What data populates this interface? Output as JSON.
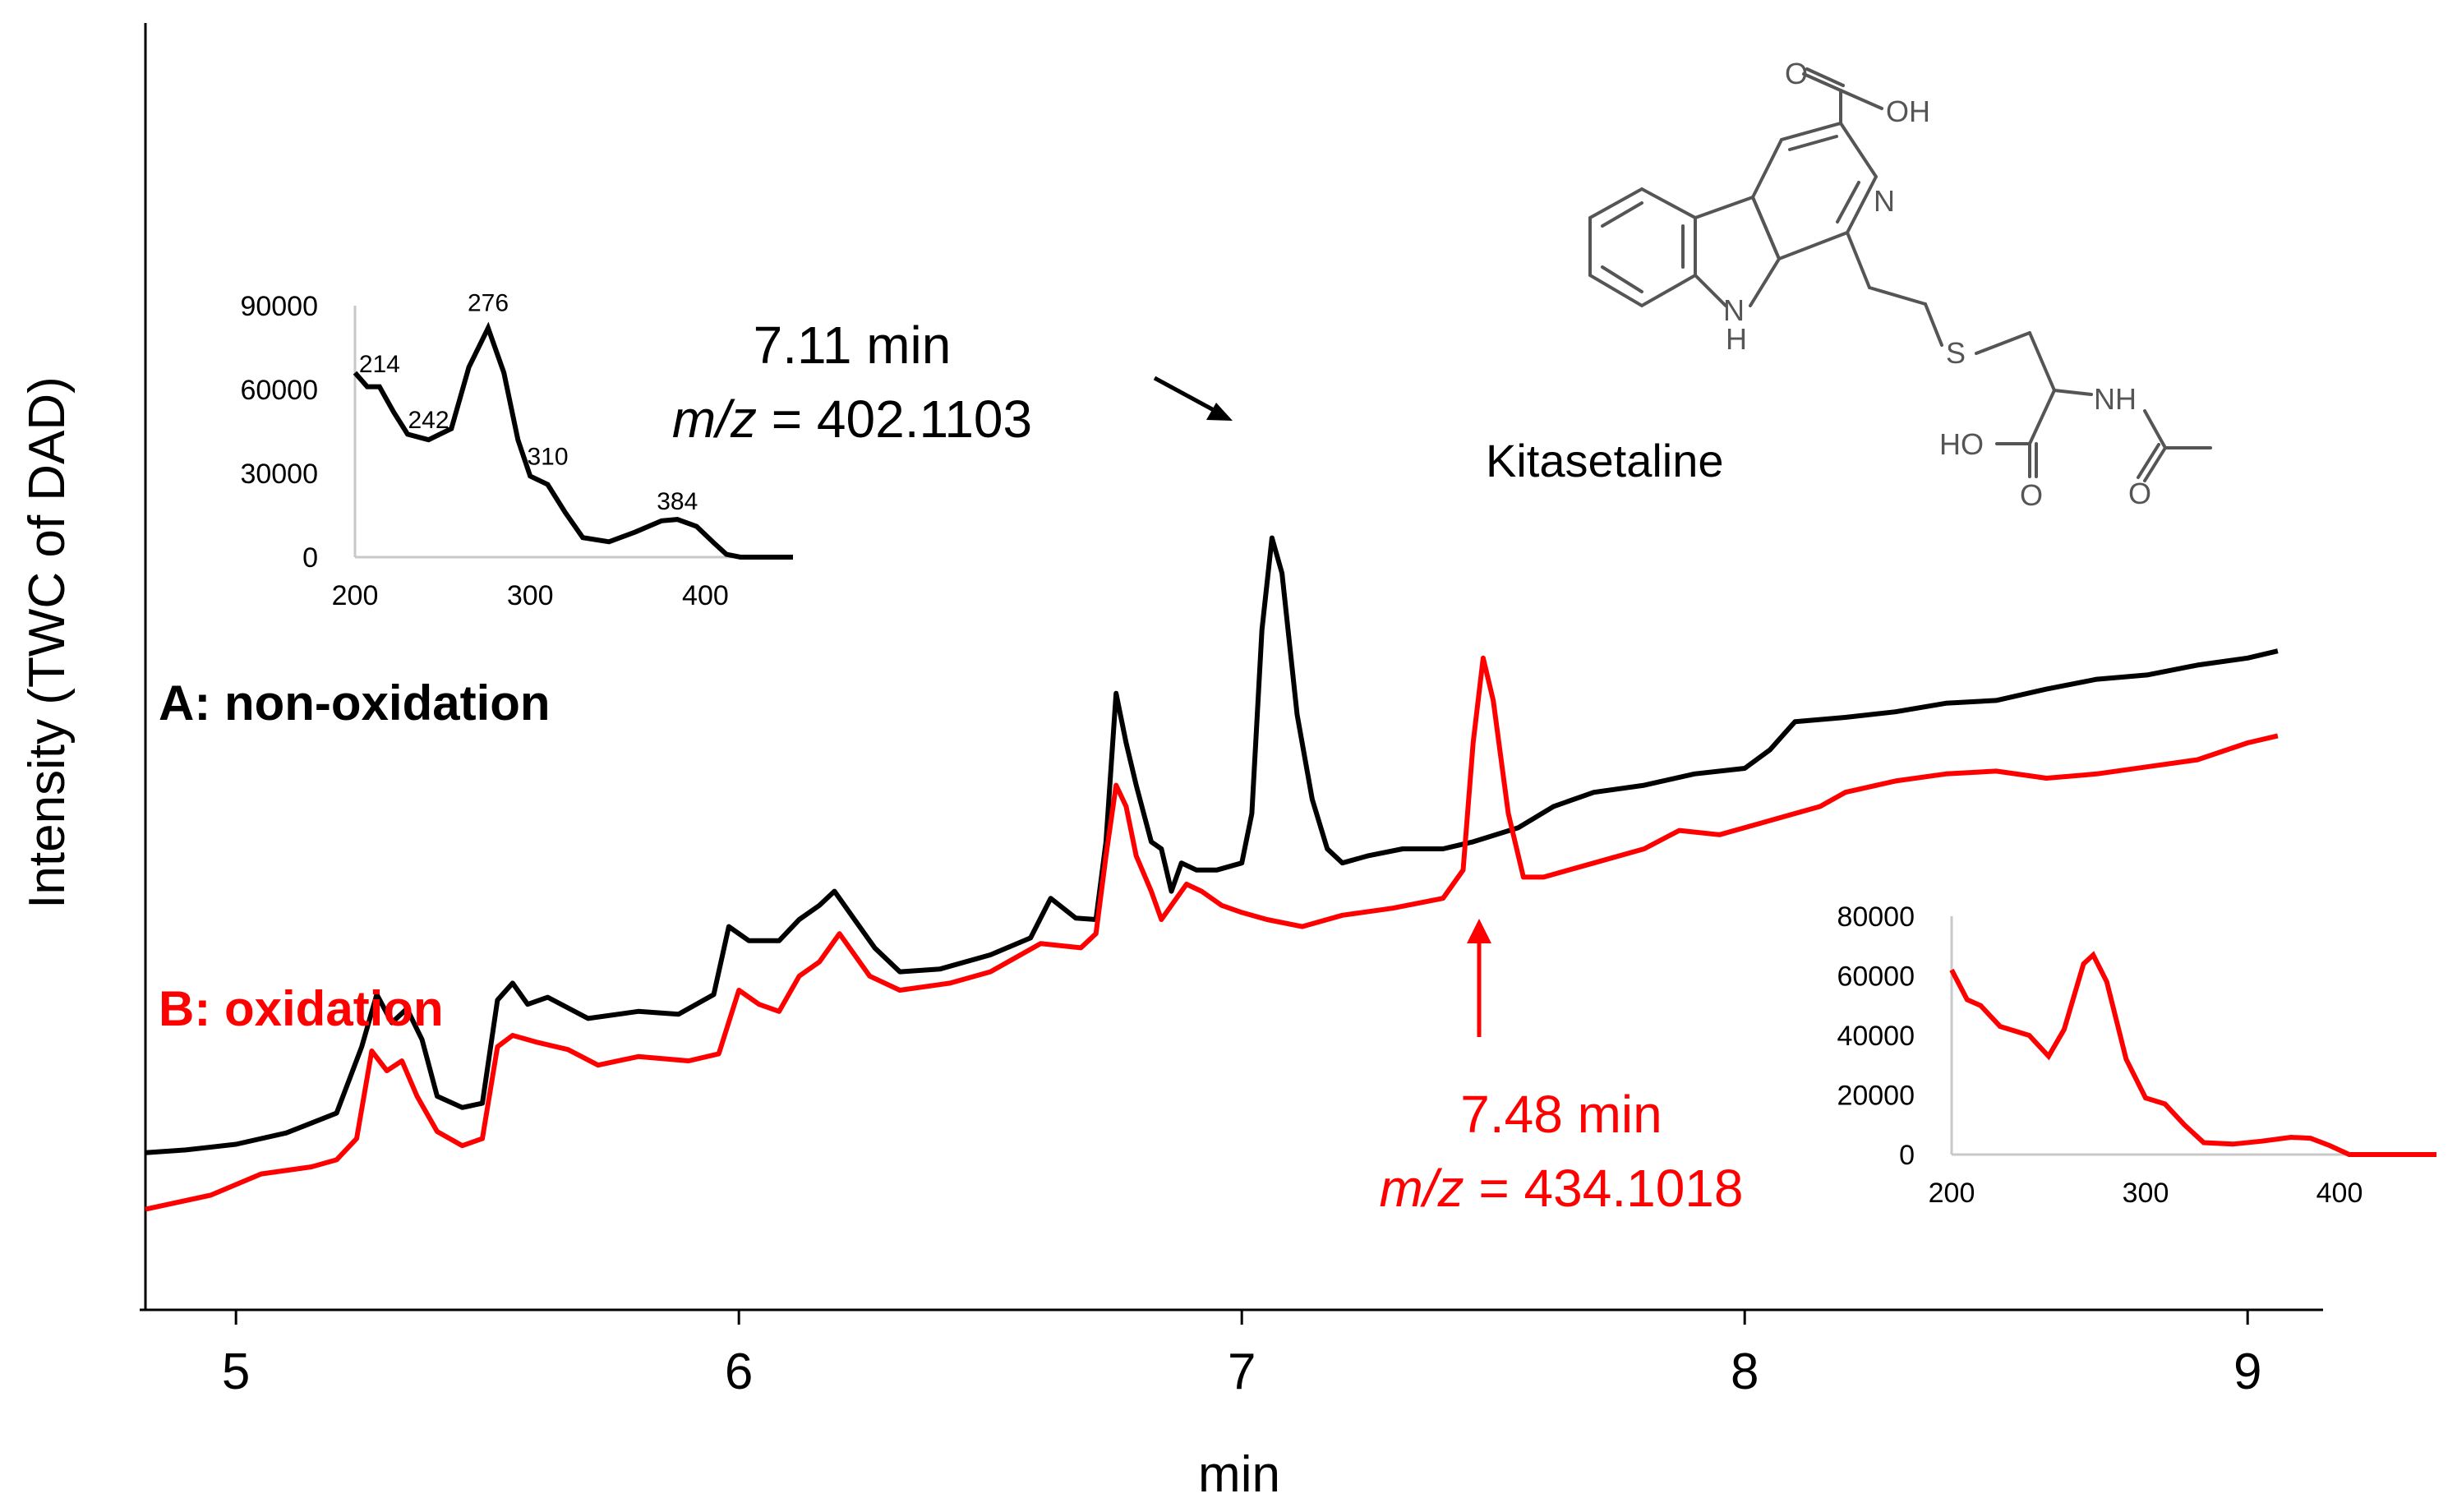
{
  "colors": {
    "black": "#000000",
    "red": "#ff0000",
    "struct": "#555555",
    "insetAxis": "#c8c8c8"
  },
  "chart_data": {
    "type": "line",
    "xlabel": "min",
    "ylabel": "Intensity (TWC of DAD)",
    "xlim": [
      4.82,
      9.15
    ],
    "x_ticks": [
      5,
      6,
      7,
      8,
      9
    ],
    "x_tick_labels": [
      "5",
      "6",
      "7",
      "8",
      "9"
    ],
    "series": [
      {
        "name": "A: non-oxidation",
        "color": "#000000",
        "points": [
          [
            4.82,
            1.0
          ],
          [
            4.9,
            1.2
          ],
          [
            5.0,
            1.6
          ],
          [
            5.1,
            2.4
          ],
          [
            5.2,
            3.8
          ],
          [
            5.25,
            8.5
          ],
          [
            5.28,
            12.2
          ],
          [
            5.31,
            10.2
          ],
          [
            5.34,
            11.2
          ],
          [
            5.37,
            9.0
          ],
          [
            5.4,
            5.0
          ],
          [
            5.45,
            4.2
          ],
          [
            5.49,
            4.5
          ],
          [
            5.52,
            11.8
          ],
          [
            5.55,
            13.0
          ],
          [
            5.58,
            11.5
          ],
          [
            5.62,
            12.0
          ],
          [
            5.7,
            10.5
          ],
          [
            5.8,
            11.0
          ],
          [
            5.88,
            10.8
          ],
          [
            5.95,
            12.2
          ],
          [
            5.98,
            17.0
          ],
          [
            6.02,
            16.0
          ],
          [
            6.08,
            16.0
          ],
          [
            6.12,
            17.5
          ],
          [
            6.16,
            18.5
          ],
          [
            6.19,
            19.5
          ],
          [
            6.23,
            17.5
          ],
          [
            6.27,
            15.5
          ],
          [
            6.32,
            13.8
          ],
          [
            6.4,
            14.0
          ],
          [
            6.5,
            15.0
          ],
          [
            6.58,
            16.2
          ],
          [
            6.62,
            19.0
          ],
          [
            6.67,
            17.6
          ],
          [
            6.71,
            17.5
          ],
          [
            6.73,
            23.0
          ],
          [
            6.75,
            33.5
          ],
          [
            6.77,
            30.0
          ],
          [
            6.79,
            27.0
          ],
          [
            6.82,
            23.0
          ],
          [
            6.84,
            22.5
          ],
          [
            6.86,
            19.5
          ],
          [
            6.88,
            21.5
          ],
          [
            6.91,
            21.0
          ],
          [
            6.95,
            21.0
          ],
          [
            7.0,
            21.5
          ],
          [
            7.02,
            25.0
          ],
          [
            7.04,
            38.0
          ],
          [
            7.06,
            44.5
          ],
          [
            7.08,
            42.0
          ],
          [
            7.11,
            32.0
          ],
          [
            7.14,
            26.0
          ],
          [
            7.17,
            22.5
          ],
          [
            7.2,
            21.5
          ],
          [
            7.25,
            22.0
          ],
          [
            7.32,
            22.5
          ],
          [
            7.4,
            22.5
          ],
          [
            7.46,
            23.0
          ],
          [
            7.55,
            24.0
          ],
          [
            7.62,
            25.5
          ],
          [
            7.7,
            26.5
          ],
          [
            7.8,
            27.0
          ],
          [
            7.9,
            27.8
          ],
          [
            8.0,
            28.2
          ],
          [
            8.05,
            29.5
          ],
          [
            8.1,
            31.5
          ],
          [
            8.2,
            31.8
          ],
          [
            8.3,
            32.2
          ],
          [
            8.4,
            32.8
          ],
          [
            8.5,
            33.0
          ],
          [
            8.6,
            33.8
          ],
          [
            8.7,
            34.5
          ],
          [
            8.8,
            34.8
          ],
          [
            8.9,
            35.5
          ],
          [
            9.0,
            36.0
          ],
          [
            9.06,
            36.5
          ]
        ]
      },
      {
        "name": "B: oxidation",
        "color": "#ff0000",
        "points": [
          [
            4.82,
            -3.0
          ],
          [
            4.95,
            -2.0
          ],
          [
            5.05,
            -0.5
          ],
          [
            5.15,
            0.0
          ],
          [
            5.2,
            0.5
          ],
          [
            5.24,
            2.0
          ],
          [
            5.27,
            8.2
          ],
          [
            5.3,
            6.8
          ],
          [
            5.33,
            7.5
          ],
          [
            5.36,
            5.0
          ],
          [
            5.4,
            2.5
          ],
          [
            5.45,
            1.5
          ],
          [
            5.49,
            2.0
          ],
          [
            5.52,
            8.5
          ],
          [
            5.55,
            9.3
          ],
          [
            5.6,
            8.8
          ],
          [
            5.66,
            8.3
          ],
          [
            5.72,
            7.2
          ],
          [
            5.8,
            7.8
          ],
          [
            5.9,
            7.5
          ],
          [
            5.96,
            8.0
          ],
          [
            6.0,
            12.5
          ],
          [
            6.04,
            11.5
          ],
          [
            6.08,
            11.0
          ],
          [
            6.12,
            13.5
          ],
          [
            6.16,
            14.5
          ],
          [
            6.2,
            16.5
          ],
          [
            6.26,
            13.5
          ],
          [
            6.32,
            12.5
          ],
          [
            6.42,
            13.0
          ],
          [
            6.5,
            13.8
          ],
          [
            6.6,
            15.8
          ],
          [
            6.68,
            15.5
          ],
          [
            6.71,
            16.5
          ],
          [
            6.73,
            22.0
          ],
          [
            6.75,
            27.0
          ],
          [
            6.77,
            25.5
          ],
          [
            6.79,
            22.0
          ],
          [
            6.82,
            19.5
          ],
          [
            6.84,
            17.5
          ],
          [
            6.86,
            18.5
          ],
          [
            6.89,
            20.0
          ],
          [
            6.92,
            19.5
          ],
          [
            6.96,
            18.5
          ],
          [
            7.0,
            18.0
          ],
          [
            7.05,
            17.5
          ],
          [
            7.12,
            17.0
          ],
          [
            7.2,
            17.8
          ],
          [
            7.3,
            18.3
          ],
          [
            7.4,
            19.0
          ],
          [
            7.44,
            21.0
          ],
          [
            7.46,
            30.0
          ],
          [
            7.48,
            36.0
          ],
          [
            7.5,
            33.0
          ],
          [
            7.53,
            25.0
          ],
          [
            7.56,
            20.5
          ],
          [
            7.6,
            20.5
          ],
          [
            7.7,
            21.5
          ],
          [
            7.8,
            22.5
          ],
          [
            7.87,
            23.8
          ],
          [
            7.95,
            23.5
          ],
          [
            8.05,
            24.5
          ],
          [
            8.15,
            25.5
          ],
          [
            8.2,
            26.5
          ],
          [
            8.3,
            27.3
          ],
          [
            8.4,
            27.8
          ],
          [
            8.5,
            28.0
          ],
          [
            8.6,
            27.5
          ],
          [
            8.7,
            27.8
          ],
          [
            8.8,
            28.3
          ],
          [
            8.9,
            28.8
          ],
          [
            9.0,
            30.0
          ],
          [
            9.06,
            30.5
          ]
        ]
      }
    ],
    "annotations": [
      {
        "id": "peak-a",
        "time": "7.11 min",
        "mz_prefix": "m/z",
        "mz_value": "= 402.1103",
        "color": "#000000"
      },
      {
        "id": "peak-b",
        "time": "7.48 min",
        "mz_prefix": "m/z",
        "mz_value": "= 434.1018",
        "color": "#ff0000"
      }
    ],
    "inset_a": {
      "type": "line",
      "color": "#000000",
      "xlim": [
        200,
        450
      ],
      "ylim": [
        0,
        90000
      ],
      "x_tick_labels": [
        "200",
        "300",
        "400"
      ],
      "y_tick_labels": [
        "0",
        "30000",
        "60000",
        "90000"
      ],
      "peak_labels": [
        {
          "x": 214,
          "y": 62000,
          "text": "214"
        },
        {
          "x": 242,
          "y": 42000,
          "text": "242"
        },
        {
          "x": 276,
          "y": 84000,
          "text": "276"
        },
        {
          "x": 310,
          "y": 29000,
          "text": "310"
        },
        {
          "x": 384,
          "y": 13000,
          "text": "384"
        }
      ],
      "points": [
        [
          200,
          66000
        ],
        [
          207,
          61000
        ],
        [
          214,
          61000
        ],
        [
          222,
          52000
        ],
        [
          230,
          44000
        ],
        [
          242,
          42000
        ],
        [
          255,
          46000
        ],
        [
          265,
          68000
        ],
        [
          276,
          82000
        ],
        [
          285,
          66000
        ],
        [
          293,
          42000
        ],
        [
          300,
          29000
        ],
        [
          310,
          26000
        ],
        [
          320,
          16000
        ],
        [
          330,
          7000
        ],
        [
          345,
          5500
        ],
        [
          360,
          9000
        ],
        [
          375,
          13000
        ],
        [
          384,
          13500
        ],
        [
          395,
          11000
        ],
        [
          405,
          5000
        ],
        [
          412,
          1000
        ],
        [
          420,
          0
        ],
        [
          450,
          0
        ]
      ]
    },
    "inset_b": {
      "type": "line",
      "color": "#ff0000",
      "xlim": [
        200,
        450
      ],
      "ylim": [
        0,
        80000
      ],
      "x_tick_labels": [
        "200",
        "300",
        "400"
      ],
      "y_tick_labels": [
        "0",
        "20000",
        "40000",
        "60000",
        "80000"
      ],
      "points": [
        [
          200,
          62000
        ],
        [
          208,
          52000
        ],
        [
          215,
          50000
        ],
        [
          225,
          43000
        ],
        [
          240,
          40000
        ],
        [
          250,
          33000
        ],
        [
          258,
          42000
        ],
        [
          268,
          64000
        ],
        [
          273,
          67000
        ],
        [
          280,
          58000
        ],
        [
          290,
          32000
        ],
        [
          300,
          19000
        ],
        [
          310,
          17000
        ],
        [
          320,
          10000
        ],
        [
          330,
          4000
        ],
        [
          345,
          3500
        ],
        [
          360,
          4500
        ],
        [
          375,
          5800
        ],
        [
          385,
          5500
        ],
        [
          395,
          3000
        ],
        [
          405,
          0
        ],
        [
          450,
          0
        ]
      ]
    }
  },
  "compound": {
    "name": "Kitasetaline",
    "atoms": {
      "oh_top": "OH",
      "o_top": "O",
      "n_ring": "N",
      "n_h": "N",
      "h": "H",
      "s": "S",
      "nh": "NH",
      "ho": "HO",
      "o_bottom_left": "O",
      "o_bottom_right": "O"
    }
  }
}
